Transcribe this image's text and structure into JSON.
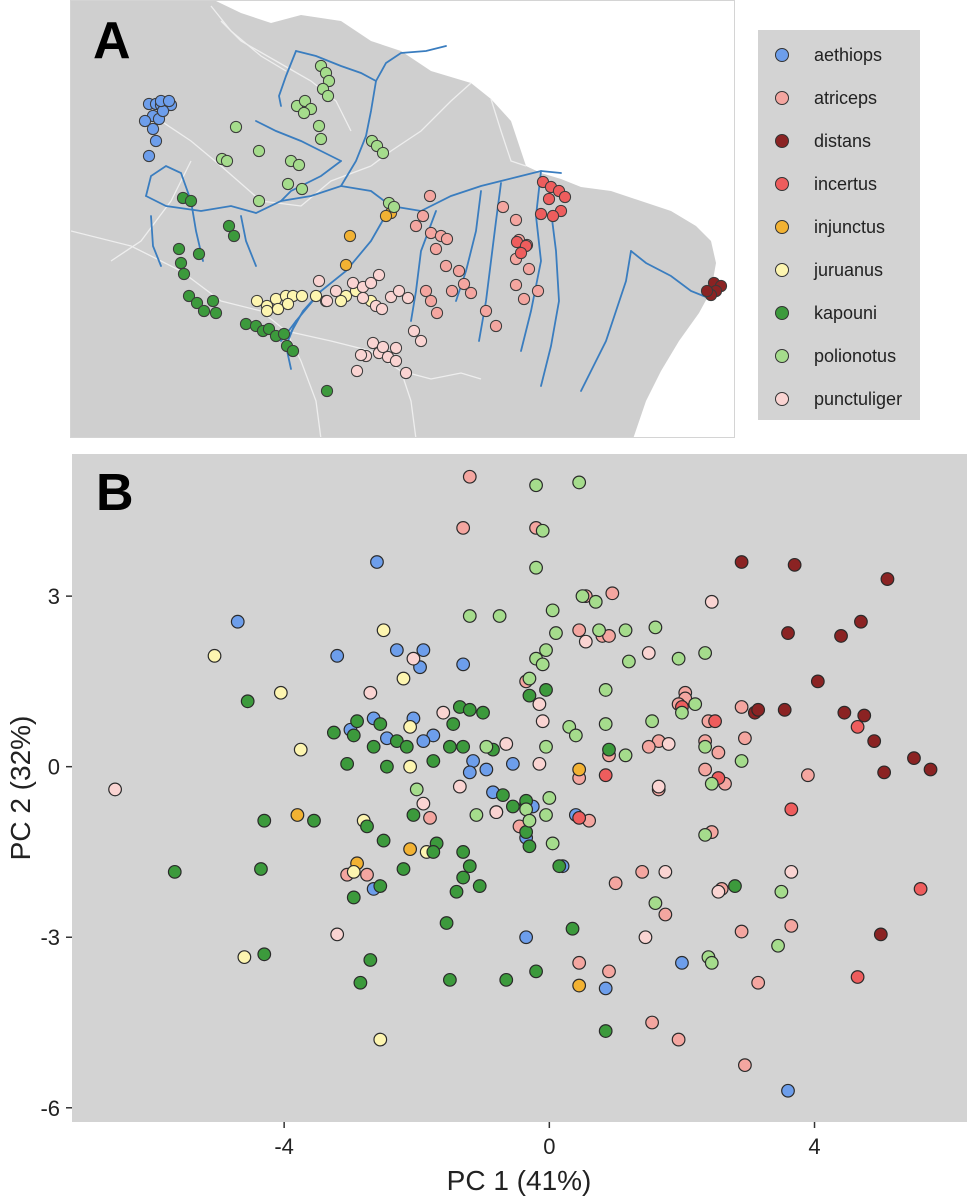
{
  "panel_a": {
    "letter": "A",
    "legend": [
      {
        "label": "aethiops",
        "color": "#6d9eeb"
      },
      {
        "label": "atriceps",
        "color": "#f4a6a0"
      },
      {
        "label": "distans",
        "color": "#8b2323"
      },
      {
        "label": "incertus",
        "color": "#ee5d5d"
      },
      {
        "label": "injunctus",
        "color": "#f2b233"
      },
      {
        "label": "juruanus",
        "color": "#fdf5b0"
      },
      {
        "label": "kapouni",
        "color": "#3c9a3c"
      },
      {
        "label": "polionotus",
        "color": "#a5dc8c"
      },
      {
        "label": "punctuliger",
        "color": "#fad4d2"
      }
    ]
  },
  "panel_b": {
    "letter": "B"
  },
  "chart_data": {
    "type": "scatter",
    "xlabel": "PC 1 (41%)",
    "ylabel": "PC 2 (32%)",
    "xlim": [
      -7.2,
      6.3
    ],
    "ylim": [
      -6.25,
      5.5
    ],
    "xticks": [
      -4,
      0,
      4
    ],
    "yticks": [
      3,
      0,
      -3,
      -6
    ],
    "grid": false,
    "series": [
      {
        "name": "aethiops",
        "color": "#6d9eeb",
        "points": [
          [
            -2.6,
            3.6
          ],
          [
            -4.7,
            2.55
          ],
          [
            -3.2,
            1.95
          ],
          [
            -2.3,
            2.05
          ],
          [
            -1.9,
            2.05
          ],
          [
            -1.3,
            1.8
          ],
          [
            -1.95,
            1.75
          ],
          [
            -2.65,
            0.85
          ],
          [
            -2.45,
            0.5
          ],
          [
            -2.05,
            0.85
          ],
          [
            -1.75,
            0.55
          ],
          [
            -1.9,
            0.45
          ],
          [
            -3.0,
            0.65
          ],
          [
            -1.15,
            0.1
          ],
          [
            -0.95,
            -0.05
          ],
          [
            -0.55,
            0.05
          ],
          [
            -1.2,
            -0.1
          ],
          [
            -0.85,
            -0.45
          ],
          [
            -0.35,
            -0.65
          ],
          [
            -0.25,
            -0.7
          ],
          [
            -0.35,
            -1.25
          ],
          [
            0.2,
            -1.75
          ],
          [
            0.4,
            -0.85
          ],
          [
            -2.65,
            -2.15
          ],
          [
            -0.35,
            -3.0
          ],
          [
            0.85,
            -3.9
          ],
          [
            2.0,
            -3.45
          ],
          [
            3.6,
            -5.7
          ]
        ]
      },
      {
        "name": "atriceps",
        "color": "#f4a6a0",
        "points": [
          [
            -1.2,
            5.1
          ],
          [
            -1.3,
            4.2
          ],
          [
            -0.2,
            4.2
          ],
          [
            0.55,
            3.0
          ],
          [
            0.95,
            3.05
          ],
          [
            0.45,
            2.4
          ],
          [
            0.8,
            2.3
          ],
          [
            0.9,
            2.3
          ],
          [
            -0.35,
            1.5
          ],
          [
            2.05,
            1.3
          ],
          [
            2.05,
            1.2
          ],
          [
            1.95,
            1.1
          ],
          [
            2.4,
            0.8
          ],
          [
            2.9,
            1.05
          ],
          [
            2.95,
            0.5
          ],
          [
            2.35,
            0.45
          ],
          [
            1.65,
            0.45
          ],
          [
            1.5,
            0.35
          ],
          [
            0.9,
            0.2
          ],
          [
            0.45,
            -0.2
          ],
          [
            2.55,
            0.25
          ],
          [
            2.35,
            -0.05
          ],
          [
            2.65,
            -0.3
          ],
          [
            3.9,
            -0.15
          ],
          [
            1.65,
            -0.4
          ],
          [
            -1.8,
            -0.9
          ],
          [
            -0.8,
            -0.8
          ],
          [
            -0.45,
            -1.05
          ],
          [
            0.6,
            -0.95
          ],
          [
            1.4,
            -1.85
          ],
          [
            1.0,
            -2.05
          ],
          [
            1.75,
            -2.6
          ],
          [
            2.45,
            -1.15
          ],
          [
            2.6,
            -2.15
          ],
          [
            2.9,
            -2.9
          ],
          [
            3.65,
            -2.8
          ],
          [
            0.45,
            -3.45
          ],
          [
            0.9,
            -3.6
          ],
          [
            3.15,
            -3.8
          ],
          [
            1.55,
            -4.5
          ],
          [
            1.95,
            -4.8
          ],
          [
            2.95,
            -5.25
          ],
          [
            -2.75,
            -1.9
          ],
          [
            -3.05,
            -1.9
          ]
        ]
      },
      {
        "name": "distans",
        "color": "#8b2323",
        "points": [
          [
            2.9,
            3.6
          ],
          [
            3.7,
            3.55
          ],
          [
            5.1,
            3.3
          ],
          [
            3.6,
            2.35
          ],
          [
            4.4,
            2.3
          ],
          [
            4.7,
            2.55
          ],
          [
            4.05,
            1.5
          ],
          [
            3.1,
            0.95
          ],
          [
            3.15,
            1.0
          ],
          [
            3.55,
            1.0
          ],
          [
            4.75,
            0.9
          ],
          [
            4.45,
            0.95
          ],
          [
            4.9,
            0.45
          ],
          [
            5.5,
            0.15
          ],
          [
            5.75,
            -0.05
          ],
          [
            5.05,
            -0.1
          ],
          [
            5.0,
            -2.95
          ]
        ]
      },
      {
        "name": "incertus",
        "color": "#ee5d5d",
        "points": [
          [
            0.45,
            -0.9
          ],
          [
            0.85,
            -0.15
          ],
          [
            2.0,
            1.05
          ],
          [
            2.5,
            0.8
          ],
          [
            2.55,
            -0.2
          ],
          [
            3.65,
            -0.75
          ],
          [
            4.65,
            0.7
          ],
          [
            5.6,
            -2.15
          ],
          [
            4.65,
            -3.7
          ]
        ]
      },
      {
        "name": "injunctus",
        "color": "#f2b233",
        "points": [
          [
            -3.8,
            -0.85
          ],
          [
            -2.1,
            -1.45
          ],
          [
            -2.9,
            -1.7
          ],
          [
            0.45,
            -0.05
          ],
          [
            0.45,
            -3.85
          ]
        ]
      },
      {
        "name": "juruanus",
        "color": "#fdf5b0",
        "points": [
          [
            -5.05,
            1.95
          ],
          [
            -4.05,
            1.3
          ],
          [
            -2.5,
            2.4
          ],
          [
            -2.2,
            1.55
          ],
          [
            -3.75,
            0.3
          ],
          [
            -2.1,
            0.7
          ],
          [
            -2.1,
            0.0
          ],
          [
            -1.85,
            -1.5
          ],
          [
            -2.95,
            -1.85
          ],
          [
            -2.8,
            -0.95
          ],
          [
            -4.6,
            -3.35
          ],
          [
            -2.55,
            -4.8
          ]
        ]
      },
      {
        "name": "kapouni",
        "color": "#3c9a3c",
        "points": [
          [
            -4.55,
            1.15
          ],
          [
            -1.35,
            1.05
          ],
          [
            -1.2,
            1.0
          ],
          [
            -1.0,
            0.95
          ],
          [
            -1.45,
            0.75
          ],
          [
            -2.9,
            0.8
          ],
          [
            -2.55,
            0.75
          ],
          [
            -3.25,
            0.6
          ],
          [
            -2.95,
            0.55
          ],
          [
            -2.65,
            0.35
          ],
          [
            -2.3,
            0.45
          ],
          [
            -2.15,
            0.35
          ],
          [
            -1.75,
            0.1
          ],
          [
            -1.5,
            0.35
          ],
          [
            -1.3,
            0.35
          ],
          [
            -0.85,
            0.3
          ],
          [
            -2.45,
            0.0
          ],
          [
            -3.05,
            0.05
          ],
          [
            -4.3,
            -0.95
          ],
          [
            -3.55,
            -0.95
          ],
          [
            -2.75,
            -1.05
          ],
          [
            -2.5,
            -1.3
          ],
          [
            -2.05,
            -0.85
          ],
          [
            -1.7,
            -1.35
          ],
          [
            -1.75,
            -1.5
          ],
          [
            -1.3,
            -1.5
          ],
          [
            -1.2,
            -1.75
          ],
          [
            -1.3,
            -1.95
          ],
          [
            -1.05,
            -2.1
          ],
          [
            -1.4,
            -2.2
          ],
          [
            -2.2,
            -1.8
          ],
          [
            -2.55,
            -2.1
          ],
          [
            -2.95,
            -2.3
          ],
          [
            -5.65,
            -1.85
          ],
          [
            -4.35,
            -1.8
          ],
          [
            -1.55,
            -2.75
          ],
          [
            -0.35,
            -1.15
          ],
          [
            -0.3,
            -1.4
          ],
          [
            -0.55,
            -0.7
          ],
          [
            -0.35,
            -0.6
          ],
          [
            0.15,
            -1.75
          ],
          [
            -0.3,
            1.25
          ],
          [
            -0.05,
            1.35
          ],
          [
            -0.7,
            -0.5
          ],
          [
            0.9,
            0.3
          ],
          [
            0.85,
            -4.65
          ],
          [
            -1.5,
            -3.75
          ],
          [
            -0.65,
            -3.75
          ],
          [
            -0.2,
            -3.6
          ],
          [
            0.35,
            -2.85
          ],
          [
            2.8,
            -2.1
          ],
          [
            -4.3,
            -3.3
          ],
          [
            -2.7,
            -3.4
          ],
          [
            -2.85,
            -3.8
          ]
        ]
      },
      {
        "name": "polionotus",
        "color": "#a5dc8c",
        "points": [
          [
            0.45,
            5.0
          ],
          [
            -0.2,
            4.95
          ],
          [
            -0.1,
            4.15
          ],
          [
            -0.2,
            3.5
          ],
          [
            -1.2,
            2.65
          ],
          [
            -0.75,
            2.65
          ],
          [
            0.05,
            2.75
          ],
          [
            0.5,
            3.0
          ],
          [
            0.7,
            2.9
          ],
          [
            0.75,
            2.4
          ],
          [
            1.15,
            2.4
          ],
          [
            1.6,
            2.45
          ],
          [
            0.1,
            2.35
          ],
          [
            -0.05,
            2.05
          ],
          [
            -0.2,
            1.9
          ],
          [
            -0.1,
            1.8
          ],
          [
            -0.3,
            1.55
          ],
          [
            1.2,
            1.85
          ],
          [
            1.95,
            1.9
          ],
          [
            2.35,
            2.0
          ],
          [
            0.85,
            1.35
          ],
          [
            0.3,
            0.7
          ],
          [
            0.85,
            0.75
          ],
          [
            0.4,
            0.55
          ],
          [
            -0.95,
            0.35
          ],
          [
            -1.1,
            -0.85
          ],
          [
            -0.05,
            0.35
          ],
          [
            0.0,
            -0.55
          ],
          [
            -0.35,
            -0.75
          ],
          [
            -0.05,
            -0.85
          ],
          [
            -0.3,
            -0.95
          ],
          [
            0.05,
            -1.35
          ],
          [
            1.55,
            0.8
          ],
          [
            2.2,
            1.1
          ],
          [
            2.0,
            0.95
          ],
          [
            2.35,
            0.35
          ],
          [
            2.45,
            -0.3
          ],
          [
            1.15,
            0.2
          ],
          [
            2.9,
            0.1
          ],
          [
            3.5,
            -2.2
          ],
          [
            3.45,
            -3.15
          ],
          [
            2.4,
            -3.35
          ],
          [
            2.45,
            -3.45
          ],
          [
            1.6,
            -2.4
          ],
          [
            2.35,
            -1.2
          ],
          [
            -2.0,
            -0.4
          ]
        ]
      },
      {
        "name": "punctuliger",
        "color": "#fad4d2",
        "points": [
          [
            2.45,
            2.9
          ],
          [
            0.55,
            2.2
          ],
          [
            1.5,
            2.0
          ],
          [
            -2.05,
            1.9
          ],
          [
            -2.7,
            1.3
          ],
          [
            -1.6,
            0.95
          ],
          [
            -0.15,
            1.1
          ],
          [
            -0.1,
            0.8
          ],
          [
            -0.65,
            0.4
          ],
          [
            -0.15,
            0.05
          ],
          [
            1.8,
            0.4
          ],
          [
            -1.35,
            -0.35
          ],
          [
            -1.9,
            -0.65
          ],
          [
            1.65,
            -0.35
          ],
          [
            3.65,
            -1.85
          ],
          [
            2.55,
            -2.2
          ],
          [
            1.75,
            -1.85
          ],
          [
            -3.2,
            -2.95
          ],
          [
            1.45,
            -3.0
          ],
          [
            -6.55,
            -0.4
          ],
          [
            -0.8,
            -0.8
          ]
        ]
      }
    ]
  }
}
